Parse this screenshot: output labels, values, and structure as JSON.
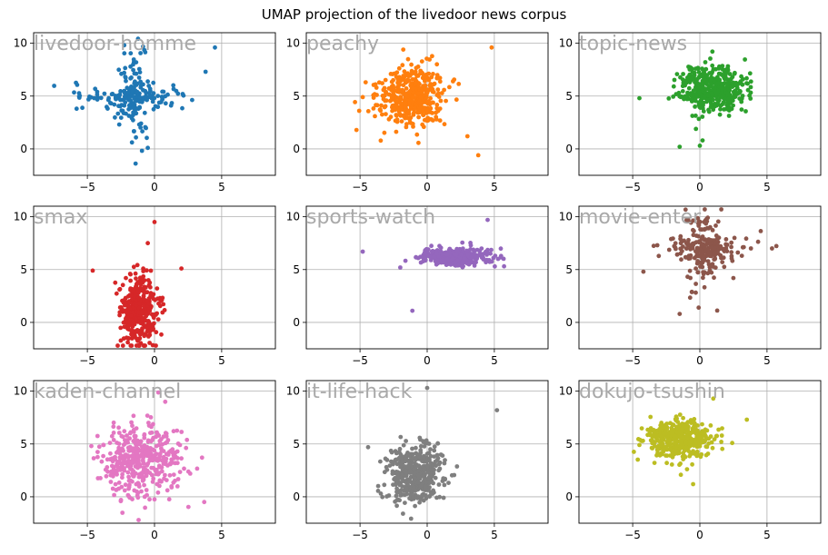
{
  "figure_title": "UMAP projection of the livedoor news corpus",
  "chart_data": [
    {
      "type": "scatter",
      "title": "livedoor-homme",
      "color": "#1f77b4",
      "xlim": [
        -9,
        9
      ],
      "ylim": [
        -2.5,
        11
      ],
      "xticks": [
        -5,
        0,
        5
      ],
      "yticks": [
        0,
        5,
        10
      ],
      "grid": true,
      "cluster": {
        "shape": "cross",
        "center": [
          -1.5,
          5
        ],
        "spread": [
          2,
          2.5
        ],
        "n": 220,
        "outliers": [
          [
            4.5,
            9.6
          ],
          [
            -5.8,
            3.8
          ],
          [
            3.8,
            7.3
          ],
          [
            -0.5,
            0.1
          ]
        ]
      }
    },
    {
      "type": "scatter",
      "title": "peachy",
      "color": "#ff7f0e",
      "xlim": [
        -9,
        9
      ],
      "ylim": [
        -2.5,
        11
      ],
      "xticks": [
        -5,
        0,
        5
      ],
      "yticks": [
        0,
        5,
        10
      ],
      "grid": true,
      "cluster": {
        "shape": "blob",
        "center": [
          -1.2,
          5
        ],
        "spread": [
          1.8,
          2
        ],
        "n": 420,
        "outliers": [
          [
            4.8,
            9.6
          ],
          [
            3.8,
            -0.6
          ],
          [
            -4.8,
            4.9
          ],
          [
            3,
            1.2
          ]
        ]
      }
    },
    {
      "type": "scatter",
      "title": "topic-news",
      "color": "#2ca02c",
      "xlim": [
        -9,
        9
      ],
      "ylim": [
        -2.5,
        11
      ],
      "xticks": [
        -5,
        0,
        5
      ],
      "yticks": [
        0,
        5,
        10
      ],
      "grid": true,
      "cluster": {
        "shape": "blob",
        "center": [
          1,
          5.6
        ],
        "spread": [
          1.8,
          1.6
        ],
        "n": 420,
        "outliers": [
          [
            -4.5,
            4.8
          ],
          [
            -1.5,
            0.2
          ],
          [
            0,
            0.3
          ],
          [
            0.2,
            0.8
          ]
        ]
      }
    },
    {
      "type": "scatter",
      "title": "smax",
      "color": "#d62728",
      "xlim": [
        -9,
        9
      ],
      "ylim": [
        -2.5,
        11
      ],
      "xticks": [
        -5,
        0,
        5
      ],
      "yticks": [
        0,
        5,
        10
      ],
      "grid": true,
      "cluster": {
        "shape": "vertical",
        "center": [
          -1.2,
          1
        ],
        "spread": [
          1,
          2.5
        ],
        "n": 380,
        "outliers": [
          [
            -4.6,
            4.9
          ],
          [
            2,
            5.1
          ],
          [
            0,
            9.5
          ],
          [
            -0.5,
            7.5
          ]
        ]
      }
    },
    {
      "type": "scatter",
      "title": "sports-watch",
      "color": "#9467bd",
      "xlim": [
        -9,
        9
      ],
      "ylim": [
        -2.5,
        11
      ],
      "xticks": [
        -5,
        0,
        5
      ],
      "yticks": [
        0,
        5,
        10
      ],
      "grid": true,
      "cluster": {
        "shape": "horizontal",
        "center": [
          2,
          6.2
        ],
        "spread": [
          1.8,
          0.6
        ],
        "n": 380,
        "outliers": [
          [
            -4.8,
            6.7
          ],
          [
            4.5,
            9.7
          ],
          [
            -1.1,
            1.1
          ],
          [
            -2,
            5.2
          ]
        ]
      }
    },
    {
      "type": "scatter",
      "title": "movie-enter",
      "color": "#8c564b",
      "xlim": [
        -9,
        9
      ],
      "ylim": [
        -2.5,
        11
      ],
      "xticks": [
        -5,
        0,
        5
      ],
      "yticks": [
        0,
        5,
        10
      ],
      "grid": true,
      "cluster": {
        "shape": "cross",
        "center": [
          0.3,
          7
        ],
        "spread": [
          1.5,
          2.2
        ],
        "n": 260,
        "outliers": [
          [
            -4.2,
            4.8
          ],
          [
            -1.5,
            0.8
          ],
          [
            3.8,
            7
          ],
          [
            2.5,
            4.2
          ]
        ]
      }
    },
    {
      "type": "scatter",
      "title": "kaden-channel",
      "color": "#e377c2",
      "xlim": [
        -9,
        9
      ],
      "ylim": [
        -2.5,
        11
      ],
      "xticks": [
        -5,
        0,
        5
      ],
      "yticks": [
        0,
        5,
        10
      ],
      "grid": true,
      "cluster": {
        "shape": "blob",
        "center": [
          -1,
          3.5
        ],
        "spread": [
          2,
          2.3
        ],
        "n": 420,
        "outliers": [
          [
            3.7,
            -0.5
          ],
          [
            -4.7,
            4.8
          ],
          [
            0.8,
            9
          ],
          [
            -2.5,
            -0.3
          ]
        ]
      }
    },
    {
      "type": "scatter",
      "title": "it-life-hack",
      "color": "#7f7f7f",
      "xlim": [
        -9,
        9
      ],
      "ylim": [
        -2.5,
        11
      ],
      "xticks": [
        -5,
        0,
        5
      ],
      "yticks": [
        0,
        5,
        10
      ],
      "grid": true,
      "cluster": {
        "shape": "blob",
        "center": [
          -0.8,
          2.2
        ],
        "spread": [
          1.5,
          2
        ],
        "n": 420,
        "outliers": [
          [
            5.2,
            8.2
          ],
          [
            -4.4,
            4.7
          ],
          [
            0,
            10.3
          ],
          [
            -1.8,
            -1.6
          ]
        ]
      }
    },
    {
      "type": "scatter",
      "title": "dokujo-tsushin",
      "color": "#bcbd22",
      "xlim": [
        -9,
        9
      ],
      "ylim": [
        -2.5,
        11
      ],
      "xticks": [
        -5,
        0,
        5
      ],
      "yticks": [
        0,
        5,
        10
      ],
      "grid": true,
      "cluster": {
        "shape": "blob",
        "center": [
          -1.5,
          5.5
        ],
        "spread": [
          1.6,
          1.4
        ],
        "n": 420,
        "outliers": [
          [
            -0.5,
            1.2
          ],
          [
            3.5,
            7.3
          ],
          [
            -4.5,
            4.9
          ],
          [
            1,
            9.3
          ]
        ]
      }
    }
  ]
}
